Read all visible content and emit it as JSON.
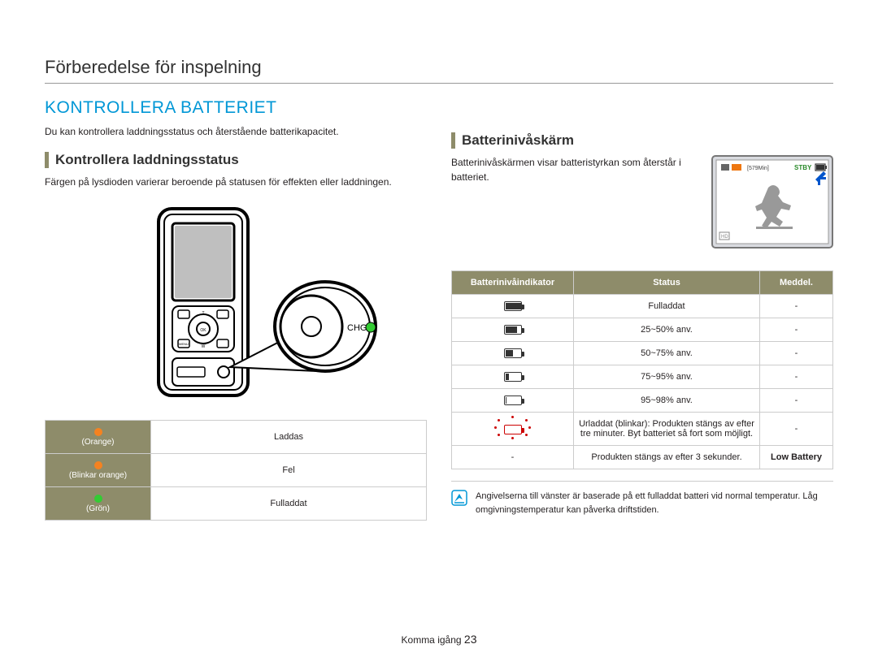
{
  "page_header": "Förberedelse för inspelning",
  "section_title": "KONTROLLERA BATTERIET",
  "intro": "Du kan kontrollera laddningsstatus och återstående batterikapacitet.",
  "left": {
    "subhead": "Kontrollera laddningsstatus",
    "body": "Färgen på lysdioden varierar beroende på statusen för effekten eller laddningen.",
    "chg_label": "CHG",
    "table": {
      "rows": [
        {
          "label": "(Orange)",
          "led_color": "#f58220",
          "status": "Laddas"
        },
        {
          "label": "(Blinkar orange)",
          "led_color": "#f58220",
          "status": "Fel"
        },
        {
          "label": "(Grön)",
          "led_color": "#33cc33",
          "status": "Fulladdat"
        }
      ]
    }
  },
  "right": {
    "subhead": "Batterinivåskärm",
    "body": "Batterinivåskärmen visar batteristyrkan som återstår i batteriet.",
    "screen_badge_time": "[579Min]",
    "screen_badge_stby": "STBY",
    "table": {
      "headers": [
        "Batterinivåindikator",
        "Status",
        "Meddel."
      ],
      "rows": [
        {
          "fill_pct": 100,
          "status": "Fulladdat",
          "msg": "-"
        },
        {
          "fill_pct": 75,
          "status": "25~50% anv.",
          "msg": "-"
        },
        {
          "fill_pct": 50,
          "status": "50~75% anv.",
          "msg": "-"
        },
        {
          "fill_pct": 25,
          "status": "75~95% anv.",
          "msg": "-"
        },
        {
          "fill_pct": 8,
          "status": "95~98% anv.",
          "msg": "-"
        },
        {
          "fill_pct": 0,
          "red": true,
          "status": "Urladdat (blinkar): Produkten stängs av efter tre minuter. Byt batteriet så fort som möjligt.",
          "msg": "-"
        },
        {
          "no_icon": true,
          "status": "Produkten stängs av efter 3 sekunder.",
          "msg": "Low Battery",
          "msg_bold": true
        }
      ]
    },
    "note": "Angivelserna till vänster är baserade på ett fulladdat batteri vid normal temperatur. Låg omgivningstemperatur kan påverka driftstiden."
  },
  "footer": {
    "label": "Komma igång",
    "page": "23"
  },
  "colors": {
    "accent_blue": "#0097d6",
    "olive": "#8e8c6a",
    "led_green": "#33cc33",
    "led_orange": "#f58220"
  }
}
